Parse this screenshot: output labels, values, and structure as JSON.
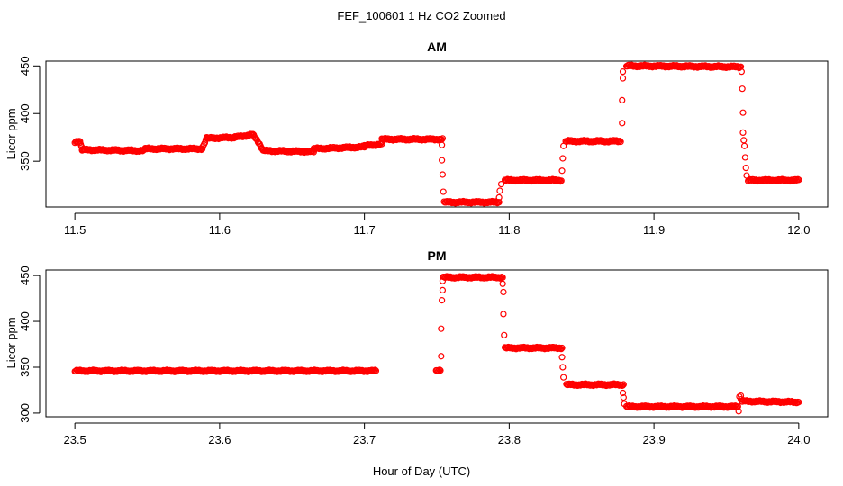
{
  "figure": {
    "title": "FEF_100601  1 Hz CO2 Zoomed",
    "xlabel": "Hour of Day (UTC)"
  },
  "colors": {
    "points": "#ff0000",
    "axis": "#000000",
    "background": "#ffffff"
  },
  "chart_data": [
    {
      "type": "scatter",
      "title": "AM",
      "xlabel": "",
      "ylabel": "Licor ppm",
      "xlim": [
        11.48,
        12.02
      ],
      "ylim": [
        302,
        455
      ],
      "xticks": [
        11.5,
        11.6,
        11.7,
        11.8,
        11.9,
        12.0
      ],
      "xtick_labels": [
        "11.5",
        "11.6",
        "11.7",
        "11.8",
        "11.9",
        "12.0"
      ],
      "yticks": [
        350,
        400,
        450
      ],
      "ytick_labels": [
        "350",
        "400",
        "450"
      ],
      "grid": false,
      "marker": "open-circle",
      "series": [
        {
          "segments": [
            {
              "x": [
                11.5,
                11.5035
              ],
              "y": [
                370,
                370
              ]
            },
            {
              "x": [
                11.5035,
                11.505
              ],
              "y": [
                370,
                362
              ]
            },
            {
              "x": [
                11.505,
                11.548
              ],
              "y": [
                362,
                361
              ]
            },
            {
              "x": [
                11.548,
                11.588
              ],
              "y": [
                363,
                363
              ]
            },
            {
              "x": [
                11.588,
                11.591
              ],
              "y": [
                363,
                374
              ]
            },
            {
              "x": [
                11.591,
                11.61
              ],
              "y": [
                374,
                375
              ]
            },
            {
              "x": [
                11.61,
                11.623
              ],
              "y": [
                375,
                378
              ]
            },
            {
              "x": [
                11.623,
                11.63
              ],
              "y": [
                378,
                362
              ]
            },
            {
              "x": [
                11.63,
                11.665
              ],
              "y": [
                361,
                360
              ]
            },
            {
              "x": [
                11.665,
                11.7
              ],
              "y": [
                363,
                365
              ]
            },
            {
              "x": [
                11.7,
                11.712
              ],
              "y": [
                366,
                368
              ]
            },
            {
              "x": [
                11.712,
                11.754
              ],
              "y": [
                373,
                373
              ]
            },
            {
              "x": [
                11.755,
                11.793
              ],
              "y": [
                307,
                307
              ]
            },
            {
              "x": [
                11.797,
                11.836
              ],
              "y": [
                330,
                330
              ]
            },
            {
              "x": [
                11.839,
                11.877
              ],
              "y": [
                371,
                371
              ]
            },
            {
              "x": [
                11.881,
                11.96
              ],
              "y": [
                450,
                449
              ]
            },
            {
              "x": [
                11.965,
                12.0
              ],
              "y": [
                330,
                330
              ]
            }
          ],
          "transitions": [
            {
              "x": 11.7535,
              "y": 367
            },
            {
              "x": 11.7535,
              "y": 351
            },
            {
              "x": 11.754,
              "y": 336
            },
            {
              "x": 11.7545,
              "y": 318
            },
            {
              "x": 11.793,
              "y": 312
            },
            {
              "x": 11.7935,
              "y": 319
            },
            {
              "x": 11.7945,
              "y": 326
            },
            {
              "x": 11.8365,
              "y": 340
            },
            {
              "x": 11.837,
              "y": 353
            },
            {
              "x": 11.8375,
              "y": 366
            },
            {
              "x": 11.878,
              "y": 390
            },
            {
              "x": 11.878,
              "y": 414
            },
            {
              "x": 11.8785,
              "y": 437
            },
            {
              "x": 11.8785,
              "y": 444
            },
            {
              "x": 11.9605,
              "y": 444
            },
            {
              "x": 11.961,
              "y": 426
            },
            {
              "x": 11.9615,
              "y": 401
            },
            {
              "x": 11.9615,
              "y": 380
            },
            {
              "x": 11.962,
              "y": 372
            },
            {
              "x": 11.9625,
              "y": 366
            },
            {
              "x": 11.963,
              "y": 354
            },
            {
              "x": 11.9635,
              "y": 343
            },
            {
              "x": 11.964,
              "y": 335
            }
          ]
        }
      ]
    },
    {
      "type": "scatter",
      "title": "PM",
      "xlabel": "",
      "ylabel": "Licor ppm",
      "xlim": [
        23.48,
        24.02
      ],
      "ylim": [
        296,
        456
      ],
      "xticks": [
        23.5,
        23.6,
        23.7,
        23.8,
        23.9,
        24.0
      ],
      "xtick_labels": [
        "23.5",
        "23.6",
        "23.7",
        "23.8",
        "23.9",
        "24.0"
      ],
      "yticks": [
        300,
        350,
        400,
        450
      ],
      "ytick_labels": [
        "300",
        "350",
        "400",
        "450"
      ],
      "grid": false,
      "marker": "open-circle",
      "series": [
        {
          "segments": [
            {
              "x": [
                23.5,
                23.708
              ],
              "y": [
                346,
                346
              ]
            },
            {
              "x": [
                23.7495,
                23.7525
              ],
              "y": [
                346,
                346
              ]
            },
            {
              "x": [
                23.7545,
                23.7955
              ],
              "y": [
                448,
                448
              ]
            },
            {
              "x": [
                23.797,
                23.8365
              ],
              "y": [
                371,
                371
              ]
            },
            {
              "x": [
                23.8395,
                23.879
              ],
              "y": [
                331,
                331
              ]
            },
            {
              "x": [
                23.881,
                23.958
              ],
              "y": [
                307,
                307
              ]
            },
            {
              "x": [
                23.9605,
                24.0
              ],
              "y": [
                313,
                312
              ]
            }
          ],
          "transitions": [
            {
              "x": 23.753,
              "y": 362
            },
            {
              "x": 23.753,
              "y": 392
            },
            {
              "x": 23.7535,
              "y": 423
            },
            {
              "x": 23.754,
              "y": 434
            },
            {
              "x": 23.754,
              "y": 444
            },
            {
              "x": 23.7955,
              "y": 441
            },
            {
              "x": 23.796,
              "y": 432
            },
            {
              "x": 23.796,
              "y": 408
            },
            {
              "x": 23.7965,
              "y": 385
            },
            {
              "x": 23.8365,
              "y": 361
            },
            {
              "x": 23.837,
              "y": 350
            },
            {
              "x": 23.8375,
              "y": 339
            },
            {
              "x": 23.8785,
              "y": 322
            },
            {
              "x": 23.879,
              "y": 317
            },
            {
              "x": 23.8795,
              "y": 310
            },
            {
              "x": 23.9585,
              "y": 302
            },
            {
              "x": 23.959,
              "y": 318
            },
            {
              "x": 23.96,
              "y": 319
            },
            {
              "x": 23.96,
              "y": 315
            }
          ]
        }
      ]
    }
  ]
}
